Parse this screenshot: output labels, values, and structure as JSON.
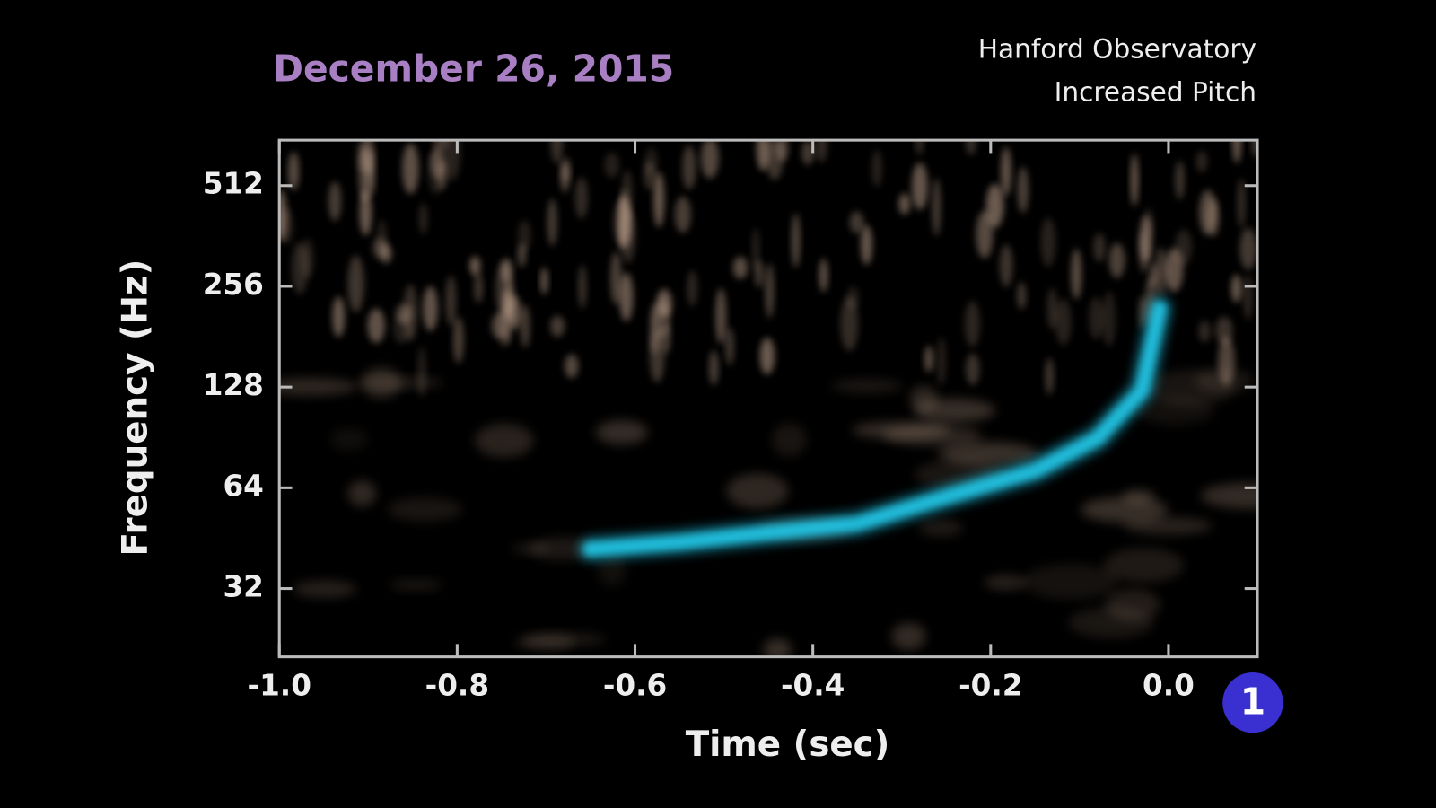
{
  "chart_data": {
    "type": "line",
    "title": "December 26, 2015",
    "annotations": [
      "Hanford Observatory",
      "Increased Pitch"
    ],
    "xlabel": "Time (sec)",
    "ylabel": "Frequency (Hz)",
    "x": [
      -0.65,
      -0.55,
      -0.45,
      -0.35,
      -0.27,
      -0.15,
      -0.08,
      -0.03,
      -0.01
    ],
    "values": [
      42,
      44,
      47,
      50,
      58,
      72,
      90,
      125,
      220
    ],
    "color": "#22c8e8",
    "xlim": [
      -1.0,
      0.1
    ],
    "xticks": [
      {
        "value": -1,
        "label": "-1.0"
      },
      -0.8,
      -0.6,
      -0.4,
      -0.2,
      {
        "value": 0,
        "label": "0.0"
      }
    ],
    "ylim": [
      20,
      700
    ],
    "yscale": "log",
    "log_base": 2,
    "yticks": [
      32,
      64,
      128,
      256,
      512
    ],
    "grid": false
  },
  "overlay": {
    "logo": "1"
  }
}
